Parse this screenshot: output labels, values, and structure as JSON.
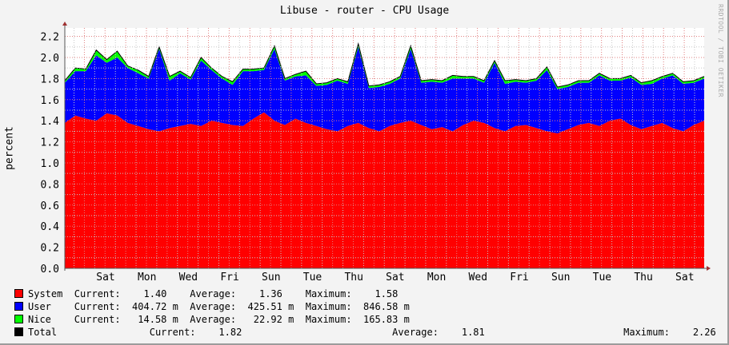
{
  "chart_data": {
    "type": "area",
    "title": "Libuse - router - CPU Usage",
    "ylabel": "percent",
    "ylim": [
      0,
      2.28
    ],
    "yticks": [
      "0.0",
      "0.2",
      "0.4",
      "0.6",
      "0.8",
      "1.0",
      "1.2",
      "1.4",
      "1.6",
      "1.8",
      "2.0",
      "2.2"
    ],
    "xticks": [
      "Sat",
      "Mon",
      "Wed",
      "Fri",
      "Sun",
      "Tue",
      "Thu",
      "Sat",
      "Mon",
      "Wed",
      "Fri",
      "Sun",
      "Tue",
      "Thu",
      "Sat"
    ],
    "grid": true,
    "stacked": true,
    "watermark": "RRDTOOL / TOBI OETIKER",
    "series": [
      {
        "name": "System",
        "color": "#FF0000",
        "values": [
          1.38,
          1.45,
          1.42,
          1.4,
          1.47,
          1.45,
          1.38,
          1.35,
          1.32,
          1.3,
          1.33,
          1.35,
          1.37,
          1.35,
          1.4,
          1.38,
          1.36,
          1.35,
          1.42,
          1.48,
          1.4,
          1.36,
          1.42,
          1.38,
          1.35,
          1.32,
          1.3,
          1.35,
          1.38,
          1.33,
          1.3,
          1.35,
          1.38,
          1.4,
          1.36,
          1.32,
          1.34,
          1.3,
          1.36,
          1.4,
          1.38,
          1.33,
          1.3,
          1.35,
          1.36,
          1.33,
          1.3,
          1.28,
          1.32,
          1.36,
          1.38,
          1.35,
          1.4,
          1.42,
          1.36,
          1.32,
          1.35,
          1.38,
          1.33,
          1.3,
          1.36,
          1.4
        ]
      },
      {
        "name": "User",
        "color": "#0000FF",
        "values": [
          0.38,
          0.42,
          0.45,
          0.62,
          0.48,
          0.55,
          0.52,
          0.5,
          0.48,
          0.78,
          0.45,
          0.5,
          0.42,
          0.62,
          0.48,
          0.42,
          0.38,
          0.52,
          0.45,
          0.4,
          0.68,
          0.42,
          0.4,
          0.45,
          0.38,
          0.42,
          0.48,
          0.4,
          0.72,
          0.38,
          0.42,
          0.4,
          0.42,
          0.68,
          0.4,
          0.45,
          0.42,
          0.5,
          0.44,
          0.4,
          0.38,
          0.62,
          0.45,
          0.42,
          0.4,
          0.45,
          0.58,
          0.42,
          0.4,
          0.4,
          0.38,
          0.48,
          0.38,
          0.36,
          0.45,
          0.42,
          0.4,
          0.42,
          0.5,
          0.45,
          0.4,
          0.4
        ]
      },
      {
        "name": "Nice",
        "color": "#00FF00",
        "values": [
          0.02,
          0.03,
          0.02,
          0.05,
          0.03,
          0.06,
          0.02,
          0.03,
          0.02,
          0.02,
          0.04,
          0.02,
          0.02,
          0.03,
          0.02,
          0.02,
          0.03,
          0.02,
          0.02,
          0.02,
          0.03,
          0.02,
          0.02,
          0.04,
          0.02,
          0.02,
          0.02,
          0.02,
          0.03,
          0.02,
          0.02,
          0.02,
          0.02,
          0.03,
          0.02,
          0.02,
          0.02,
          0.03,
          0.02,
          0.02,
          0.02,
          0.02,
          0.03,
          0.02,
          0.02,
          0.02,
          0.03,
          0.02,
          0.02,
          0.02,
          0.02,
          0.02,
          0.02,
          0.02,
          0.02,
          0.02,
          0.03,
          0.02,
          0.02,
          0.02,
          0.02,
          0.02
        ]
      }
    ],
    "total_color": "#000000"
  },
  "legend": [
    {
      "name": "System",
      "color": "#FF0000",
      "text": "System  Current:    1.40    Average:    1.36    Maximum:    1.58"
    },
    {
      "name": "User",
      "color": "#0000FF",
      "text": "User    Current:  404.72 m  Average:  425.51 m  Maximum:  846.58 m"
    },
    {
      "name": "Nice",
      "color": "#00FF00",
      "text": "Nice    Current:   14.58 m  Average:   22.92 m  Maximum:  165.83 m"
    },
    {
      "name": "Total",
      "color": "#000000",
      "text": "Total                Current:    1.82                          Average:    1.81                        Maximum:    2.26"
    }
  ]
}
